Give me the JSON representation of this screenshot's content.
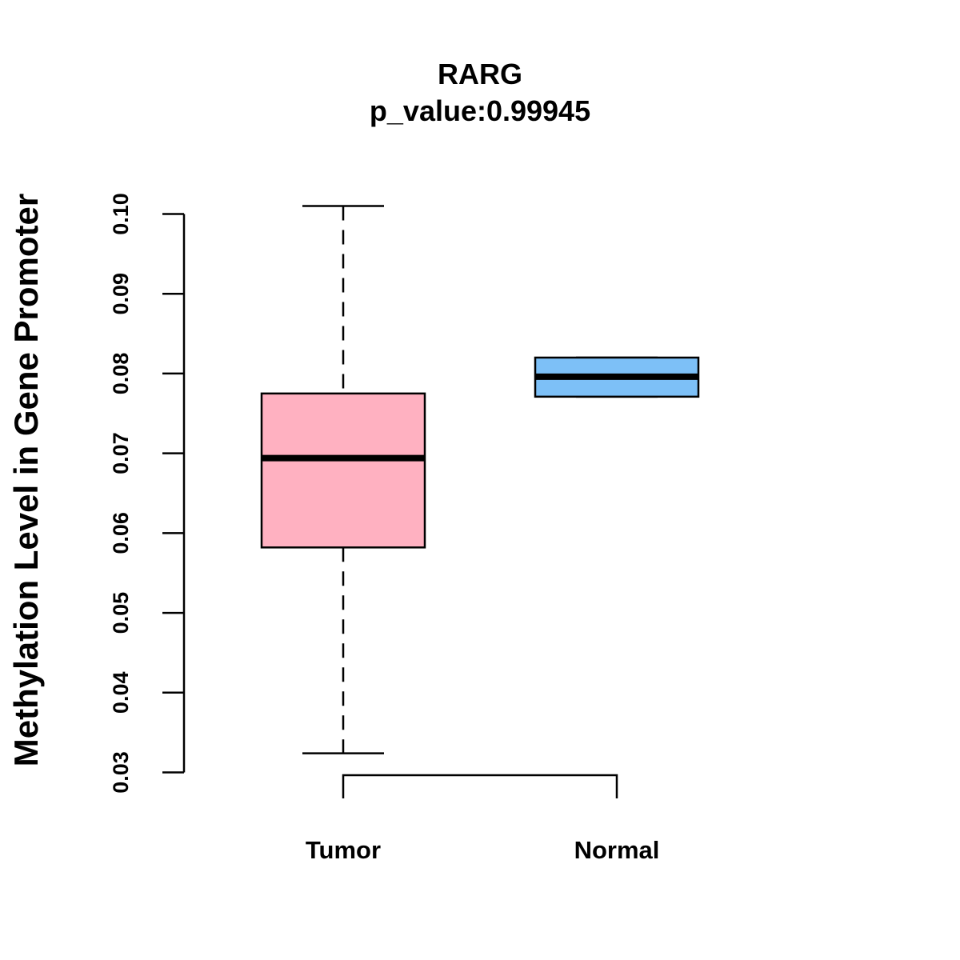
{
  "chart_data": {
    "type": "boxplot",
    "title": "RARG",
    "subtitle": "p_value:0.99945",
    "ylabel": "Methylation Level in Gene Promoter",
    "xlabel": "",
    "ylim": [
      0.03,
      0.1
    ],
    "y_ticks": [
      0.03,
      0.04,
      0.05,
      0.06,
      0.07,
      0.08,
      0.09,
      0.1
    ],
    "y_tick_labels": [
      "0.03",
      "0.04",
      "0.05",
      "0.06",
      "0.07",
      "0.08",
      "0.09",
      "0.10"
    ],
    "grid": false,
    "groups": [
      {
        "name": "Tumor",
        "whisker_low": 0.0324,
        "q1": 0.0582,
        "median": 0.0694,
        "q3": 0.0775,
        "whisker_high": 0.101,
        "color": "#FFB1C1"
      },
      {
        "name": "Normal",
        "whisker_low": 0.0771,
        "q1": 0.0771,
        "median": 0.0796,
        "q3": 0.082,
        "whisker_high": 0.082,
        "color": "#7DC0F7"
      }
    ],
    "comparison_bracket": {
      "from": "Tumor",
      "to": "Normal",
      "label": ""
    }
  }
}
